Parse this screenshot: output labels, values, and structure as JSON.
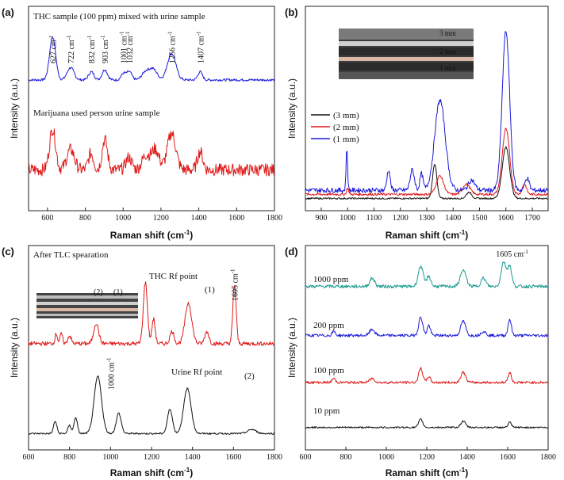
{
  "chart_data": [
    {
      "id": "a",
      "type": "line",
      "panel_label": "(a)",
      "xlabel": "Raman shift (cm",
      "xlabel_sup": "-1",
      "xlabel_end": ")",
      "ylabel": "Intensity (a.u.)",
      "xlim": [
        500,
        1800
      ],
      "xticks": [
        600,
        800,
        1000,
        1200,
        1400,
        1600,
        1800
      ],
      "grid": false,
      "annotations": [
        {
          "text": "THC sample (100 ppm) mixed with urine sample"
        },
        {
          "text": "Marijuana used person urine sample"
        }
      ],
      "peak_labels": [
        {
          "x": 627,
          "text": "627 cm",
          "sup": "-1"
        },
        {
          "x": 722,
          "text": "722 cm",
          "sup": "-1"
        },
        {
          "x": 832,
          "text": "832 cm",
          "sup": "-1"
        },
        {
          "x": 903,
          "text": "903 cm",
          "sup": "-1"
        },
        {
          "x": 1001,
          "text": "1001 cm",
          "sup": "-1"
        },
        {
          "x": 1032,
          "text": "1032 cm",
          "sup": "-1"
        },
        {
          "x": 1256,
          "text": "1256 cm",
          "sup": "-1"
        },
        {
          "x": 1407,
          "text": "1407 cm",
          "sup": "-1"
        }
      ],
      "series": [
        {
          "color": "#1a1adb",
          "baseline": 0.64,
          "noise": 0.006,
          "peaks": [
            [
              627,
              0.21,
              16
            ],
            [
              722,
              0.06,
              18
            ],
            [
              832,
              0.04,
              14
            ],
            [
              903,
              0.05,
              14
            ],
            [
              1001,
              0.03,
              12
            ],
            [
              1032,
              0.04,
              14
            ],
            [
              1120,
              0.04,
              20
            ],
            [
              1160,
              0.05,
              20
            ],
            [
              1256,
              0.13,
              22
            ],
            [
              1407,
              0.04,
              12
            ]
          ]
        },
        {
          "color": "#e01818",
          "baseline": 0.2,
          "noise": 0.03,
          "peaks": [
            [
              627,
              0.2,
              16
            ],
            [
              722,
              0.1,
              20
            ],
            [
              830,
              0.08,
              14
            ],
            [
              903,
              0.15,
              14
            ],
            [
              1030,
              0.06,
              16
            ],
            [
              1120,
              0.07,
              20
            ],
            [
              1170,
              0.1,
              20
            ],
            [
              1256,
              0.18,
              22
            ],
            [
              1407,
              0.09,
              14
            ]
          ]
        }
      ]
    },
    {
      "id": "b",
      "type": "line",
      "panel_label": "(b)",
      "xlabel": "Raman shift (cm",
      "xlabel_sup": "-1",
      "xlabel_end": ")",
      "ylabel": "Intensity (a.u.)",
      "xlim": [
        840,
        1760
      ],
      "xticks": [
        900,
        1000,
        1100,
        1200,
        1300,
        1400,
        1500,
        1600,
        1700
      ],
      "grid": false,
      "legend_position": "left",
      "inset_labels": [
        "3 mm",
        "2 mm",
        "1 mm"
      ],
      "series": [
        {
          "name": "(3 mm)",
          "color": "#111111",
          "baseline": 0.06,
          "noise": 0.004,
          "peaks": [
            [
              1330,
              0.17,
              8
            ],
            [
              1460,
              0.03,
              10
            ],
            [
              1600,
              0.25,
              14
            ]
          ]
        },
        {
          "name": "(2 mm)",
          "color": "#e01818",
          "baseline": 0.08,
          "noise": 0.006,
          "peaks": [
            [
              1000,
              0.03,
              4
            ],
            [
              1350,
              0.09,
              14
            ],
            [
              1450,
              0.05,
              14
            ],
            [
              1600,
              0.32,
              14
            ],
            [
              1670,
              0.05,
              8
            ]
          ]
        },
        {
          "name": "(1 mm)",
          "color": "#1a1adb",
          "baseline": 0.1,
          "noise": 0.012,
          "peaks": [
            [
              997,
              0.2,
              3
            ],
            [
              1155,
              0.1,
              6
            ],
            [
              1245,
              0.1,
              8
            ],
            [
              1280,
              0.08,
              6
            ],
            [
              1350,
              0.44,
              20
            ],
            [
              1470,
              0.05,
              12
            ],
            [
              1600,
              0.78,
              14
            ],
            [
              1680,
              0.06,
              8
            ]
          ]
        }
      ]
    },
    {
      "id": "c",
      "type": "line",
      "panel_label": "(c)",
      "xlabel": "Raman shift (cm",
      "xlabel_sup": "-1",
      "xlabel_end": ")",
      "ylabel": "Intensity (a.u.)",
      "xlim": [
        600,
        1800
      ],
      "xticks": [
        600,
        800,
        1000,
        1200,
        1400,
        1600,
        1800
      ],
      "grid": false,
      "annotations": [
        {
          "text": "After TLC spearation"
        },
        {
          "text": "THC Rf point"
        },
        {
          "text": "Urine Rf point"
        },
        {
          "text": "(1)"
        },
        {
          "text": "(2)"
        }
      ],
      "peak_labels": [
        {
          "x": 1605,
          "text": "1605 cm",
          "sup": "-1"
        },
        {
          "x": 1000,
          "text": "1000 cm",
          "sup": "-1"
        }
      ],
      "inset_labels": [
        "(2)",
        "(1)"
      ],
      "series": [
        {
          "color": "#e01818",
          "baseline": 0.52,
          "noise": 0.01,
          "peaks": [
            [
              735,
              0.05,
              6
            ],
            [
              760,
              0.05,
              6
            ],
            [
              800,
              0.04,
              8
            ],
            [
              930,
              0.1,
              12
            ],
            [
              1170,
              0.3,
              10
            ],
            [
              1210,
              0.12,
              8
            ],
            [
              1300,
              0.06,
              10
            ],
            [
              1380,
              0.2,
              16
            ],
            [
              1470,
              0.06,
              10
            ],
            [
              1605,
              0.29,
              8
            ]
          ]
        },
        {
          "color": "#111111",
          "baseline": 0.08,
          "noise": 0.004,
          "peaks": [
            [
              730,
              0.06,
              8
            ],
            [
              800,
              0.04,
              8
            ],
            [
              830,
              0.08,
              8
            ],
            [
              938,
              0.28,
              18
            ],
            [
              1040,
              0.1,
              12
            ],
            [
              1290,
              0.12,
              12
            ],
            [
              1375,
              0.22,
              18
            ],
            [
              1690,
              0.02,
              20
            ]
          ]
        }
      ]
    },
    {
      "id": "d",
      "type": "line",
      "panel_label": "(d)",
      "xlabel": "Raman shift (cm",
      "xlabel_sup": "-1",
      "xlabel_end": ")",
      "ylabel": "Intensity (a.u.)",
      "xlim": [
        600,
        1800
      ],
      "xticks": [
        600,
        800,
        1000,
        1200,
        1400,
        1600,
        1800
      ],
      "grid": false,
      "peak_labels": [
        {
          "x": 1605,
          "text": "1605 cm",
          "sup": "-1"
        }
      ],
      "series": [
        {
          "name": "1000 ppm",
          "color": "#1a9b8f",
          "baseline": 0.8,
          "noise": 0.008,
          "peaks": [
            [
              930,
              0.04,
              12
            ],
            [
              1170,
              0.1,
              12
            ],
            [
              1210,
              0.05,
              10
            ],
            [
              1380,
              0.08,
              14
            ],
            [
              1480,
              0.04,
              12
            ],
            [
              1580,
              0.12,
              12
            ],
            [
              1610,
              0.1,
              10
            ]
          ]
        },
        {
          "name": "200 ppm",
          "color": "#1a1adb",
          "baseline": 0.56,
          "noise": 0.007,
          "peaks": [
            [
              740,
              0.02,
              8
            ],
            [
              930,
              0.03,
              12
            ],
            [
              1170,
              0.09,
              10
            ],
            [
              1210,
              0.05,
              8
            ],
            [
              1380,
              0.07,
              12
            ],
            [
              1480,
              0.02,
              12
            ],
            [
              1610,
              0.08,
              8
            ]
          ]
        },
        {
          "name": "100 ppm",
          "color": "#e01818",
          "baseline": 0.33,
          "noise": 0.006,
          "peaks": [
            [
              740,
              0.02,
              8
            ],
            [
              930,
              0.02,
              12
            ],
            [
              1170,
              0.07,
              10
            ],
            [
              1210,
              0.03,
              8
            ],
            [
              1380,
              0.05,
              12
            ],
            [
              1610,
              0.05,
              8
            ]
          ]
        },
        {
          "name": "10 ppm",
          "color": "#111111",
          "baseline": 0.11,
          "noise": 0.004,
          "peaks": [
            [
              1170,
              0.04,
              10
            ],
            [
              1380,
              0.03,
              12
            ],
            [
              1610,
              0.025,
              8
            ]
          ]
        }
      ]
    }
  ]
}
